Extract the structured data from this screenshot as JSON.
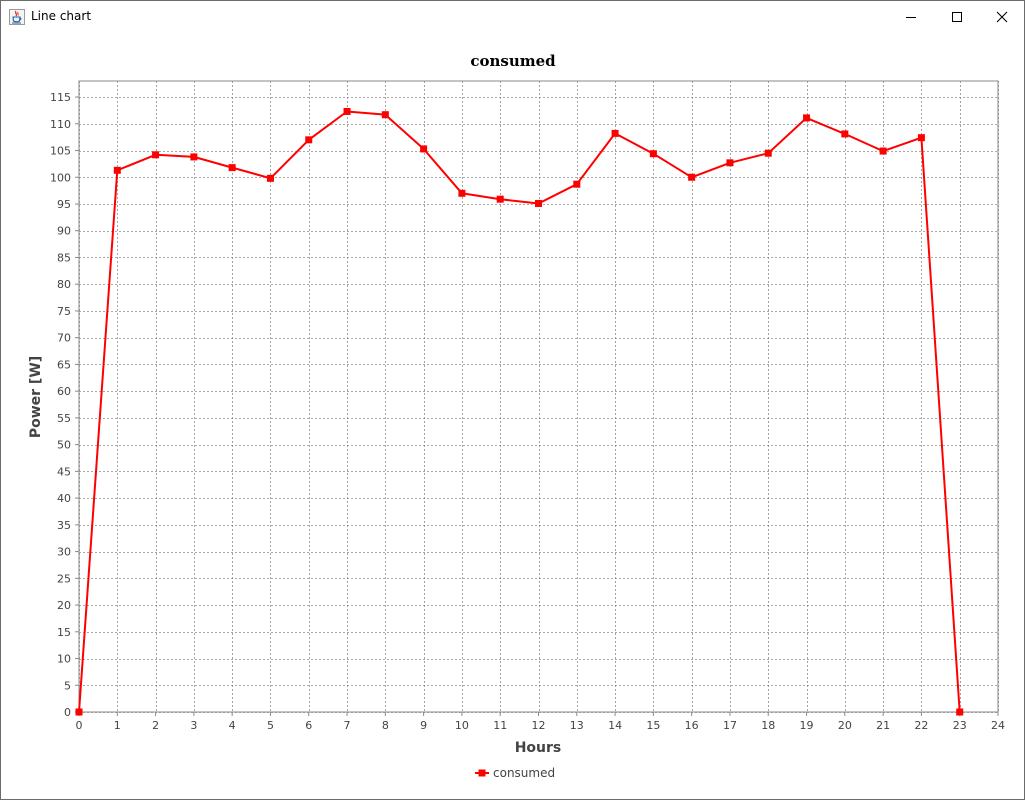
{
  "window": {
    "title": "Line chart",
    "app_icon": "java-cup-icon",
    "controls": {
      "minimize": "minimize-icon",
      "maximize": "maximize-icon",
      "close": "close-icon"
    }
  },
  "chart_data": {
    "type": "line",
    "title": "consumed",
    "xlabel": "Hours",
    "ylabel": "Power [W]",
    "xlim": [
      0,
      24
    ],
    "ylim": [
      0,
      118
    ],
    "x_ticks": [
      0,
      1,
      2,
      3,
      4,
      5,
      6,
      7,
      8,
      9,
      10,
      11,
      12,
      13,
      14,
      15,
      16,
      17,
      18,
      19,
      20,
      21,
      22,
      23,
      24
    ],
    "y_ticks": [
      0,
      5,
      10,
      15,
      20,
      25,
      30,
      35,
      40,
      45,
      50,
      55,
      60,
      65,
      70,
      75,
      80,
      85,
      90,
      95,
      100,
      105,
      110,
      115
    ],
    "grid": true,
    "legend_position": "bottom",
    "series": [
      {
        "name": "consumed",
        "color": "#ff0000",
        "marker": "square",
        "x": [
          0,
          1,
          2,
          3,
          4,
          5,
          6,
          7,
          8,
          9,
          10,
          11,
          12,
          13,
          14,
          15,
          16,
          17,
          18,
          19,
          20,
          21,
          22,
          23
        ],
        "y": [
          0,
          101.3,
          104.2,
          103.8,
          101.8,
          99.8,
          107.0,
          112.3,
          111.7,
          105.3,
          97.0,
          95.9,
          95.1,
          98.7,
          108.2,
          104.4,
          100.0,
          102.7,
          104.5,
          111.1,
          108.1,
          104.9,
          107.4,
          0
        ]
      }
    ]
  }
}
